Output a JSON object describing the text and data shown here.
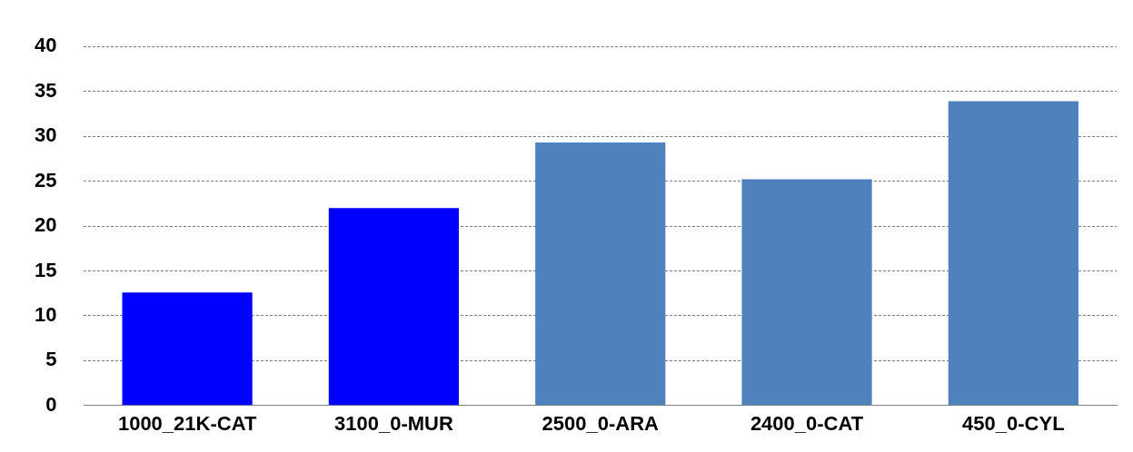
{
  "chart_data": {
    "type": "bar",
    "categories": [
      "1000_21K-CAT",
      "3100_0-MUR",
      "2500_0-ARA",
      "2400_0-CAT",
      "450_0-CYL"
    ],
    "values": [
      12.6,
      22.0,
      29.3,
      25.2,
      33.9
    ],
    "colors": [
      "#0000ff",
      "#0000ff",
      "#4f81bd",
      "#4f81bd",
      "#4f81bd"
    ],
    "ylim": [
      0,
      40
    ],
    "yticks": [
      0,
      5,
      10,
      15,
      20,
      25,
      30,
      35,
      40
    ],
    "grid": "y"
  }
}
